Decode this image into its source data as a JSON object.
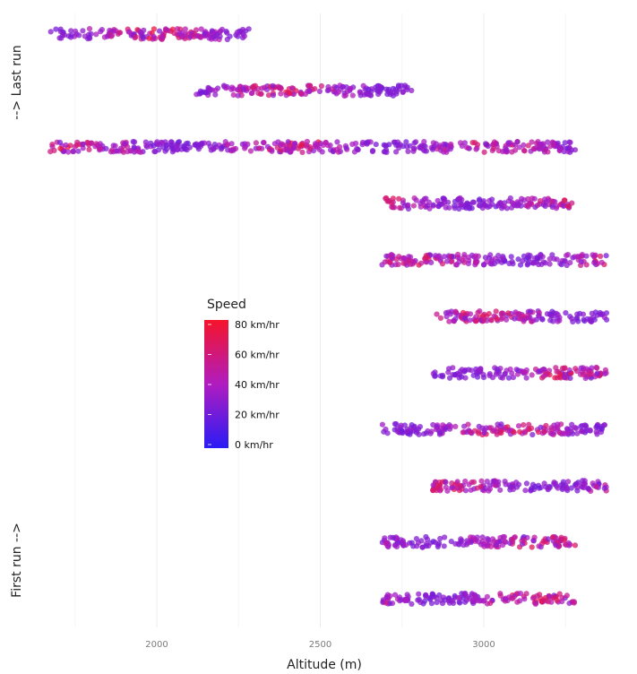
{
  "chart_data": {
    "type": "scatter",
    "title": "",
    "xlabel": "Altitude (m)",
    "ylabel": "",
    "xlim": [
      1665,
      3410
    ],
    "x_ticks": [
      2000,
      2500,
      3000
    ],
    "grid": true,
    "side_labels": {
      "top": "-->  Last run",
      "bottom": "First run -->"
    },
    "color_scale": {
      "title": "Speed",
      "unit": "km/hr",
      "min": 0,
      "max": 80,
      "low_color": "#2a1cf5",
      "mid_color": "#b01cc0",
      "high_color": "#f5142a",
      "breaks": [
        {
          "value": 80,
          "label": "80 km/hr"
        },
        {
          "value": 60,
          "label": "60 km/hr"
        },
        {
          "value": 40,
          "label": "40 km/hr"
        },
        {
          "value": 20,
          "label": "20 km/hr"
        },
        {
          "value": 0,
          "label": "0 km/hr"
        }
      ]
    },
    "legend_position": "middle-left",
    "runs": [
      {
        "row": 1,
        "altitude_min": 2680,
        "altitude_max": 3290
      },
      {
        "row": 2,
        "altitude_min": 2680,
        "altitude_max": 3290
      },
      {
        "row": 3,
        "altitude_min": 2835,
        "altitude_max": 3385
      },
      {
        "row": 4,
        "altitude_min": 2680,
        "altitude_max": 3385
      },
      {
        "row": 5,
        "altitude_min": 2835,
        "altitude_max": 3385
      },
      {
        "row": 6,
        "altitude_min": 2835,
        "altitude_max": 3385
      },
      {
        "row": 7,
        "altitude_min": 2680,
        "altitude_max": 3385
      },
      {
        "row": 8,
        "altitude_min": 2680,
        "altitude_max": 3290
      },
      {
        "row": 9,
        "altitude_min": 1665,
        "altitude_max": 3290
      },
      {
        "row": 10,
        "altitude_min": 2110,
        "altitude_max": 2790
      },
      {
        "row": 11,
        "altitude_min": 1665,
        "altitude_max": 2290
      }
    ]
  }
}
